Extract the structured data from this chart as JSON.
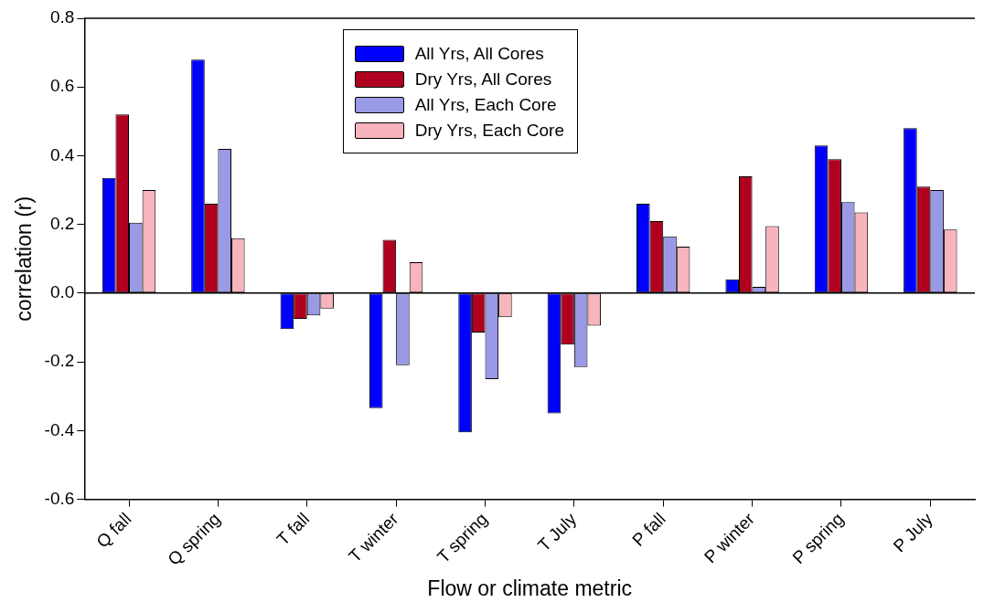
{
  "chart_data": {
    "type": "bar",
    "xlabel": "Flow or climate metric",
    "ylabel": "correlation (r)",
    "categories": [
      "Q fall",
      "Q spring",
      "T fall",
      "T winter",
      "T spring",
      "T July",
      "P fall",
      "P winter",
      "P spring",
      "P July"
    ],
    "series": [
      {
        "name": "All Yrs, All Cores",
        "color": "#0000ff",
        "values": [
          0.335,
          0.68,
          -0.105,
          -0.335,
          -0.405,
          -0.35,
          0.26,
          0.04,
          0.43,
          0.48
        ]
      },
      {
        "name": "Dry Yrs, All Cores",
        "color": "#b00020",
        "values": [
          0.52,
          0.26,
          -0.075,
          0.155,
          -0.115,
          -0.15,
          0.21,
          0.34,
          0.39,
          0.31
        ]
      },
      {
        "name": "All Yrs, Each Core",
        "color": "#9999e6",
        "values": [
          0.205,
          0.42,
          -0.065,
          -0.21,
          -0.25,
          -0.215,
          0.165,
          0.018,
          0.265,
          0.3
        ]
      },
      {
        "name": "Dry Yrs, Each Core",
        "color": "#f8b4bc",
        "values": [
          0.3,
          0.16,
          -0.045,
          0.09,
          -0.07,
          -0.095,
          0.135,
          0.195,
          0.235,
          0.185
        ]
      }
    ],
    "ylim": [
      -0.6,
      0.8
    ],
    "yticks": [
      -0.6,
      -0.4,
      -0.2,
      {
        "value": 0,
        "label": "0.0"
      },
      0.2,
      0.4,
      0.6,
      0.8
    ],
    "ref_lines": [
      {
        "axis": "y",
        "value": 0,
        "color": "#000000"
      }
    ],
    "grid": false,
    "legend": "top"
  }
}
